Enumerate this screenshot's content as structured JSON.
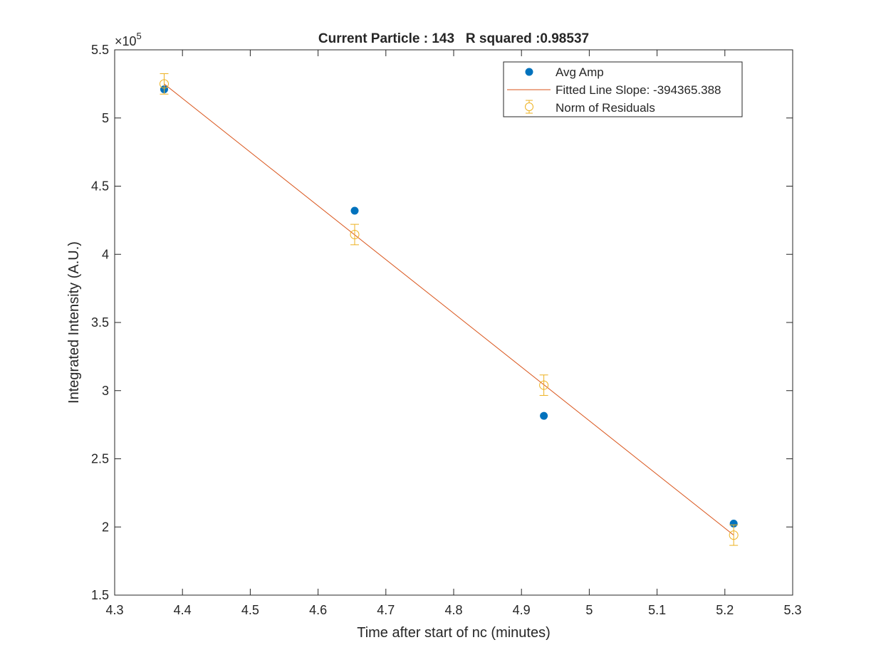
{
  "chart_data": {
    "type": "scatter",
    "title": "Current Particle : 143   R squared :0.98537",
    "xlabel": "Time after start of nc (minutes)",
    "ylabel": "Integrated Intensity (A.U.)",
    "y_exponent_label": "×10",
    "y_exponent_power": "5",
    "xlim": [
      4.3,
      5.3
    ],
    "ylim": [
      150000,
      550000
    ],
    "x_ticks": [
      4.3,
      4.4,
      4.5,
      4.6,
      4.7,
      4.8,
      4.9,
      5.0,
      5.1,
      5.2,
      5.3
    ],
    "x_tick_labels": [
      "4.3",
      "4.4",
      "4.5",
      "4.6",
      "4.7",
      "4.8",
      "4.9",
      "5",
      "5.1",
      "5.2",
      "5.3"
    ],
    "y_ticks": [
      150000,
      200000,
      250000,
      300000,
      350000,
      400000,
      450000,
      500000,
      550000
    ],
    "y_tick_labels": [
      "1.5",
      "2",
      "2.5",
      "3",
      "3.5",
      "4",
      "4.5",
      "5",
      "5.5"
    ],
    "grid": false,
    "legend_position": "top-right",
    "series": [
      {
        "name": "Avg Amp",
        "kind": "markers",
        "marker": "filled-circle",
        "color": "#0072BD",
        "x": [
          4.373,
          4.654,
          4.933,
          5.213
        ],
        "y": [
          521000,
          432000,
          281500,
          202500
        ]
      },
      {
        "name": "Fitted Line Slope: -394365.388",
        "kind": "line",
        "color": "#D95319",
        "x": [
          4.373,
          5.213
        ],
        "y": [
          525000,
          194000
        ]
      },
      {
        "name": "Norm of Residuals",
        "kind": "errorbar",
        "marker": "open-circle",
        "color": "#EDB120",
        "x": [
          4.373,
          4.654,
          4.933,
          5.213
        ],
        "y": [
          525000,
          414500,
          304000,
          194000
        ],
        "err": [
          7500,
          7500,
          7500,
          7500
        ]
      }
    ]
  }
}
